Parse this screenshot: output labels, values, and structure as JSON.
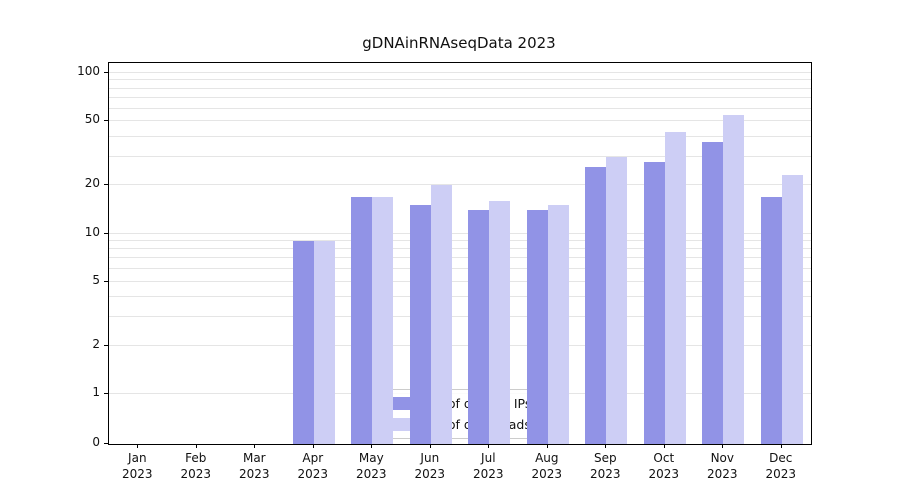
{
  "chart_data": {
    "type": "bar",
    "title": "gDNAinRNAseqData 2023",
    "categories": [
      "Jan",
      "Feb",
      "Mar",
      "Apr",
      "May",
      "Jun",
      "Jul",
      "Aug",
      "Sep",
      "Oct",
      "Nov",
      "Dec"
    ],
    "category_year": "2023",
    "series": [
      {
        "name": "Nb of distinct IPs",
        "color": "#9193e6",
        "values": [
          0,
          0,
          0,
          9,
          17,
          15,
          14,
          14,
          26,
          28,
          37,
          17
        ]
      },
      {
        "name": "Nb of downloads",
        "color": "#cdcef5",
        "values": [
          0,
          0,
          0,
          9,
          17,
          20,
          16,
          15,
          30,
          43,
          55,
          23
        ]
      }
    ],
    "xlabel": "",
    "ylabel": "",
    "yscale": "symlog",
    "yticks": [
      0,
      1,
      2,
      5,
      10,
      20,
      50,
      100
    ],
    "ylim": [
      0,
      115
    ],
    "grid": true,
    "gridlines": [
      1,
      2,
      3,
      4,
      5,
      6,
      7,
      8,
      9,
      10,
      20,
      30,
      40,
      50,
      60,
      70,
      80,
      90,
      100
    ],
    "legend_position": "lower center"
  }
}
